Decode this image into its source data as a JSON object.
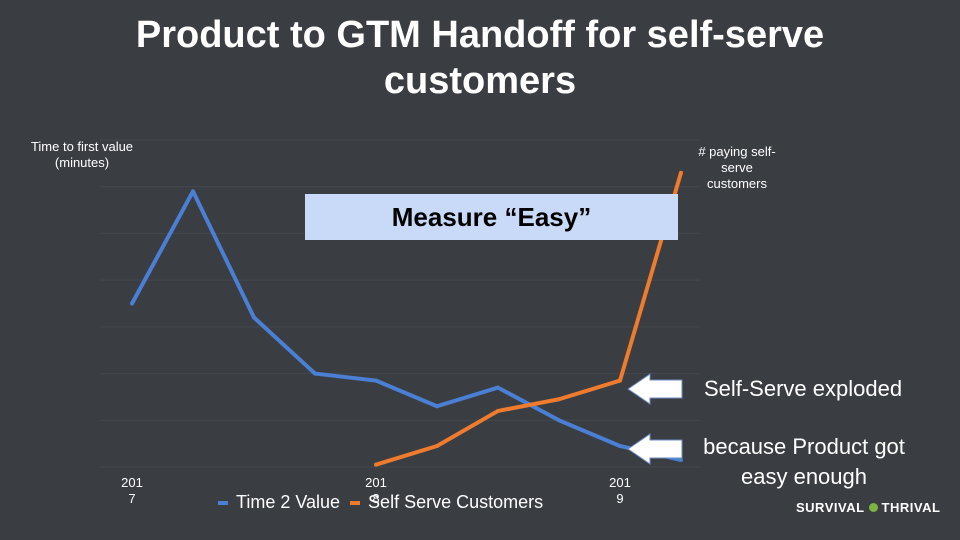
{
  "title": "Product to GTM Handoff for self-serve customers",
  "left_axis_label": "Time to first value (minutes)",
  "right_axis_label": "# paying self-serve customers",
  "callout": "Measure “Easy”",
  "annotations": [
    {
      "text": "Self-Serve exploded"
    },
    {
      "text": "because Product got easy enough"
    }
  ],
  "brand": {
    "left": "SURVIVAL",
    "right": "THRIVAL"
  },
  "colors": {
    "background": "#3a3d42",
    "time2value": "#4a7fd4",
    "selfserve": "#ee7b2e",
    "callout_bg": "#c9daf8",
    "arrow": "#ffffff"
  },
  "chart_data": {
    "type": "line",
    "categories": [
      "2017",
      "",
      "",
      "",
      "2018",
      "",
      "",
      "",
      "2019",
      ""
    ],
    "x_tick_labels": [
      {
        "index": 0,
        "text": "201\n7"
      },
      {
        "index": 4,
        "text": "201\n8"
      },
      {
        "index": 8,
        "text": "201\n9"
      }
    ],
    "series": [
      {
        "name": "Time 2 Value",
        "axis": "left",
        "values": [
          3500,
          5900,
          3200,
          2000,
          1850,
          1300,
          1700,
          1000,
          450,
          150
        ]
      },
      {
        "name": "Self Serve Customers",
        "axis": "right",
        "values": [
          null,
          null,
          null,
          null,
          0.1,
          0.9,
          2.4,
          2.9,
          3.7,
          12.6
        ]
      }
    ],
    "ylim_left": [
      0,
      7000
    ],
    "ylim_right": [
      0,
      14
    ],
    "legend_position": "bottom"
  }
}
